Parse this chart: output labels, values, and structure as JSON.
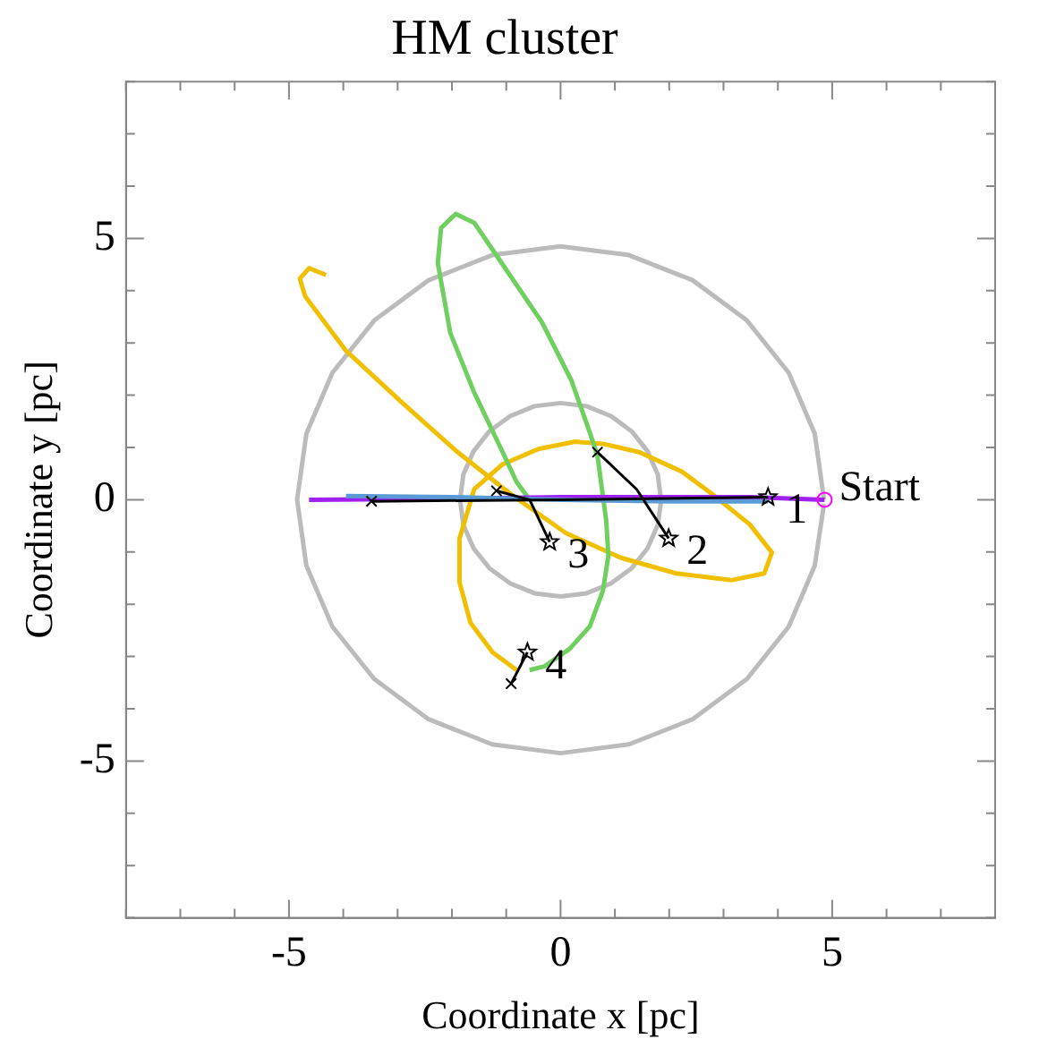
{
  "chart_data": {
    "type": "line",
    "title": "HM cluster",
    "xlabel": "Coordinate x [pc]",
    "ylabel": "Coordinate y [pc]",
    "xlim": [
      -8,
      8
    ],
    "ylim": [
      -8,
      8
    ],
    "xticks": [
      {
        "value": -8,
        "label": null
      },
      {
        "value": -7,
        "label": null
      },
      {
        "value": -6,
        "label": null
      },
      -5,
      {
        "value": -4,
        "label": null
      },
      {
        "value": -3,
        "label": null
      },
      {
        "value": -2,
        "label": null
      },
      {
        "value": -1,
        "label": null
      },
      0,
      {
        "value": 1,
        "label": null
      },
      {
        "value": 2,
        "label": null
      },
      {
        "value": 3,
        "label": null
      },
      {
        "value": 4,
        "label": null
      },
      5,
      {
        "value": 6,
        "label": null
      },
      {
        "value": 7,
        "label": null
      },
      {
        "value": 8,
        "label": null
      }
    ],
    "yticks": [
      {
        "value": -8,
        "label": null
      },
      {
        "value": -7,
        "label": null
      },
      {
        "value": -6,
        "label": null
      },
      -5,
      {
        "value": -4,
        "label": null
      },
      {
        "value": -3,
        "label": null
      },
      {
        "value": -2,
        "label": null
      },
      {
        "value": -1,
        "label": null
      },
      0,
      {
        "value": 1,
        "label": null
      },
      {
        "value": 2,
        "label": null
      },
      {
        "value": 3,
        "label": null
      },
      {
        "value": 4,
        "label": null
      },
      5,
      {
        "value": 6,
        "label": null
      },
      {
        "value": 7,
        "label": null
      },
      {
        "value": 8,
        "label": null
      }
    ],
    "grid": false,
    "legend": false,
    "series": [
      {
        "color": "#bbbbbb",
        "marker": "none",
        "x": [
          4.85,
          4.68,
          4.2,
          3.43,
          2.43,
          1.26,
          0,
          -1.26,
          -2.43,
          -3.43,
          -4.2,
          -4.68,
          -4.85,
          -4.68,
          -4.2,
          -3.43,
          -2.43,
          -1.26,
          0,
          1.26,
          2.43,
          3.43,
          4.2,
          4.68,
          4.85
        ],
        "values": [
          0,
          1.26,
          2.43,
          3.43,
          4.2,
          4.68,
          4.85,
          4.68,
          4.2,
          3.43,
          2.43,
          1.26,
          0,
          -1.26,
          -2.43,
          -3.43,
          -4.2,
          -4.68,
          -4.85,
          -4.68,
          -4.2,
          -3.43,
          -2.43,
          -1.26,
          -0.08
        ]
      },
      {
        "color": "#bbbbbb",
        "marker": "none",
        "x": [
          1.85,
          1.79,
          1.6,
          1.31,
          0.93,
          0.48,
          0,
          -0.48,
          -0.93,
          -1.31,
          -1.6,
          -1.79,
          -1.85,
          -1.79,
          -1.6,
          -1.31,
          -0.93,
          -0.48,
          0,
          0.48,
          0.93,
          1.31,
          1.6,
          1.79,
          1.85
        ],
        "values": [
          0,
          0.48,
          0.93,
          1.31,
          1.6,
          1.79,
          1.85,
          1.79,
          1.6,
          1.31,
          0.93,
          0.48,
          0,
          -0.48,
          -0.93,
          -1.31,
          -1.6,
          -1.79,
          -1.85,
          -1.79,
          -1.6,
          -1.31,
          -0.93,
          -0.48,
          -0.03
        ]
      },
      {
        "color": "#f0c000",
        "marker": "none",
        "x": [
          -4.32,
          -4.63,
          -4.8,
          -4.7,
          -3.95,
          -2.94,
          -1.93,
          -0.91,
          0.1,
          1.11,
          2.13,
          3.14,
          3.75,
          3.89,
          3.48,
          2.8,
          2.23,
          1.45,
          0.78,
          0.27,
          -0.41,
          -1.08,
          -1.59,
          -1.86,
          -1.86,
          -1.66,
          -1.25,
          -0.81
        ],
        "values": [
          4.3,
          4.43,
          4.23,
          3.89,
          2.85,
          1.88,
          0.94,
          0.1,
          -0.64,
          -1.11,
          -1.41,
          -1.54,
          -1.41,
          -1.01,
          -0.47,
          0.1,
          0.54,
          0.91,
          1.07,
          1.11,
          0.97,
          0.67,
          0.2,
          -0.74,
          -1.58,
          -2.35,
          -2.92,
          -3.26
        ]
      },
      {
        "color": "#6fcf5f",
        "marker": "none",
        "x": [
          -0.57,
          -0.81,
          -1.08,
          -1.59,
          -2.03,
          -2.26,
          -2.2,
          -1.93,
          -1.59,
          -1.15,
          -0.34,
          0.2,
          0.54,
          0.68,
          0.84,
          0.88,
          0.78,
          0.54,
          0.17,
          -0.3,
          -0.57
        ],
        "values": [
          0,
          0.34,
          0.94,
          2.05,
          3.19,
          4.53,
          5.2,
          5.47,
          5.3,
          4.63,
          3.39,
          2.28,
          1.28,
          0.84,
          -0.4,
          -1.07,
          -1.74,
          -2.42,
          -2.85,
          -3.19,
          -3.26
        ]
      },
      {
        "color": "#a020f0",
        "marker": "none",
        "x": [
          -4.63,
          -2,
          0,
          2,
          3.5,
          4.86
        ],
        "values": [
          0,
          0.02,
          0.05,
          0.05,
          0.05,
          0
        ]
      },
      {
        "color": "#5b9bd5",
        "marker": "none",
        "x": [
          -3.95,
          -2,
          0,
          2,
          3.82
        ],
        "values": [
          0.07,
          0.05,
          0,
          -0.03,
          -0.03
        ]
      },
      {
        "color": "#000000",
        "marker": "none",
        "x": [
          -3.48,
          0,
          3.82
        ],
        "values": [
          -0.03,
          0,
          0.05
        ]
      },
      {
        "color": "#000000",
        "marker": "none",
        "x": [
          0.68,
          1.4,
          1.99
        ],
        "values": [
          0.91,
          0.2,
          -0.74
        ]
      },
      {
        "color": "#000000",
        "marker": "none",
        "x": [
          -1.18,
          -0.57,
          -0.2
        ],
        "values": [
          0.17,
          0,
          -0.81
        ]
      },
      {
        "color": "#000000",
        "marker": "none",
        "x": [
          -0.91,
          -0.61
        ],
        "values": [
          -3.52,
          -2.92
        ]
      },
      {
        "type": "scatter",
        "color": "#000000",
        "marker": "cross",
        "x": [
          -3.48,
          0.68,
          -1.18,
          -0.91
        ],
        "values": [
          -0.03,
          0.91,
          0.17,
          -3.52
        ]
      },
      {
        "type": "scatter",
        "color": "#000000",
        "marker": "star",
        "x": [
          3.82,
          1.99,
          -0.2,
          -0.61
        ],
        "values": [
          0.05,
          -0.74,
          -0.81,
          -2.92
        ]
      },
      {
        "type": "scatter",
        "color": "#ff00ff",
        "marker": "circle",
        "x": [
          4.86
        ],
        "values": [
          0
        ]
      }
    ],
    "annotations": [
      {
        "text": "1",
        "x": 3.82,
        "y": 0.05
      },
      {
        "text": "2",
        "x": 1.99,
        "y": -0.74
      },
      {
        "text": "3",
        "x": -0.2,
        "y": -0.81
      },
      {
        "text": "4",
        "x": -0.61,
        "y": -2.92
      },
      {
        "text": "Start",
        "x": 4.86,
        "y": 0
      }
    ]
  }
}
